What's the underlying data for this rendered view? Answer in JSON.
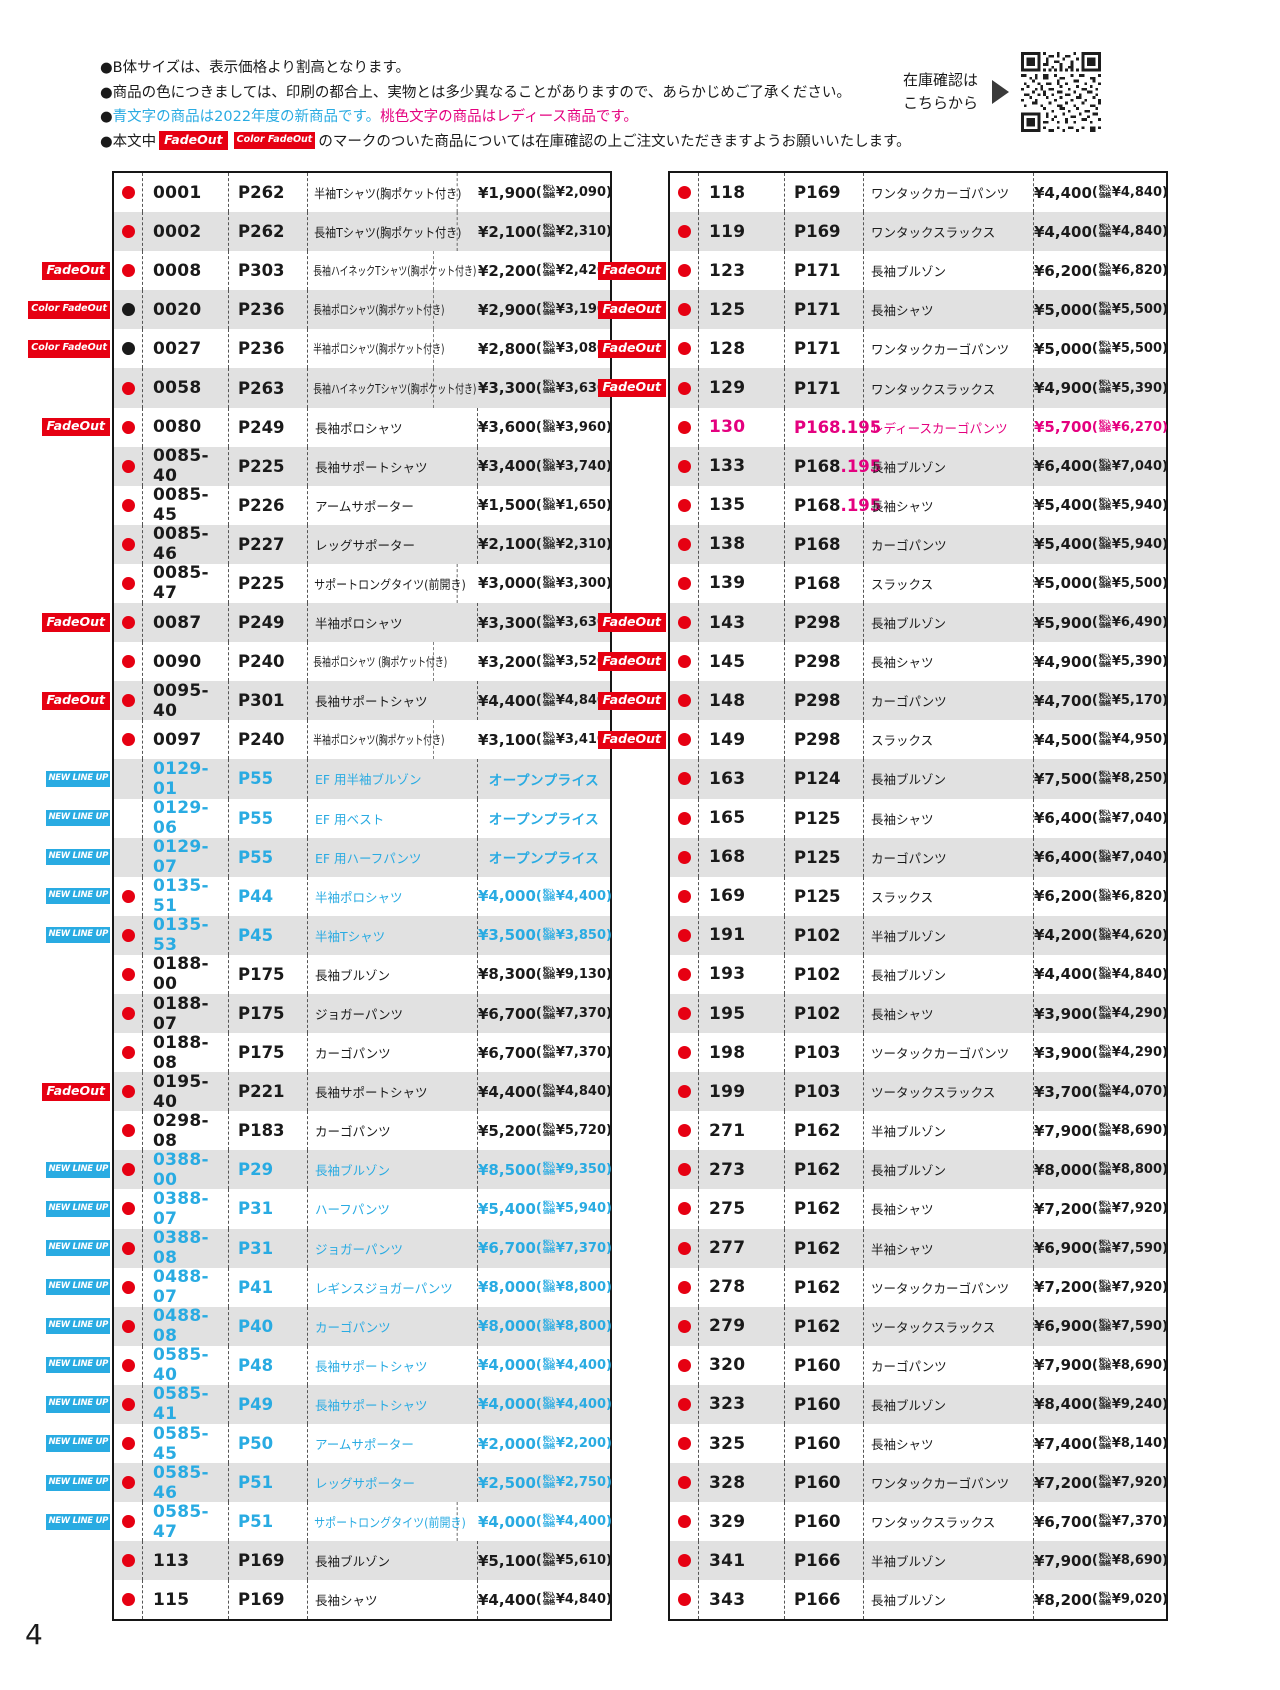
{
  "page_number": "4",
  "colors": {
    "red": "#e60012",
    "blue": "#29abe2",
    "pink": "#e4007f",
    "black": "#1a1a1a",
    "row_alt": "#e1e1e1"
  },
  "header": {
    "note1": "●B体サイズは、表示価格より割高となります。",
    "note2": "●商品の色につきましては、印刷の都合上、実物とは多少異なることがありますので、あらかじめご了承ください。",
    "note3_bullet": "●",
    "note3_blue": "青文字の商品は2022年度の新商品です。",
    "note3_pink": "桃色文字の商品はレディース商品です。",
    "note4_pre": "●本文中",
    "note4_post": "のマークのついた商品については在庫確認の上ご注文いただきますようお願いいたします。",
    "stock_check_line1": "在庫確認は",
    "stock_check_line2": "こちらから"
  },
  "badges": {
    "fadeout": "FadeOut",
    "color_fadeout": "Color FadeOut",
    "new_lineup": "NEW LINE UP"
  },
  "tax_label": [
    "税込",
    "価格"
  ],
  "open_price": "オープンプライス",
  "tables": {
    "left": [
      {
        "badge": null,
        "dot": "red",
        "code": "0001",
        "page": "P262",
        "name": "半袖Tシャツ(胸ポケット付き)",
        "price": "¥1,900",
        "tax": "¥2,090",
        "color": "black"
      },
      {
        "badge": null,
        "dot": "red",
        "code": "0002",
        "page": "P262",
        "name": "長袖Tシャツ(胸ポケット付き)",
        "price": "¥2,100",
        "tax": "¥2,310",
        "color": "black"
      },
      {
        "badge": "fadeout",
        "dot": "red",
        "code": "0008",
        "page": "P303",
        "name": "長袖ハイネックTシャツ(胸ポケット付き)",
        "price": "¥2,200",
        "tax": "¥2,420",
        "color": "black"
      },
      {
        "badge": "color_fadeout",
        "dot": "black",
        "code": "0020",
        "page": "P236",
        "name": "長袖ポロシャツ(胸ポケット付き)",
        "price": "¥2,900",
        "tax": "¥3,190",
        "color": "black"
      },
      {
        "badge": "color_fadeout",
        "dot": "black",
        "code": "0027",
        "page": "P236",
        "name": "半袖ポロシャツ(胸ポケット付き)",
        "price": "¥2,800",
        "tax": "¥3,080",
        "color": "black"
      },
      {
        "badge": null,
        "dot": "red",
        "code": "0058",
        "page": "P263",
        "name": "長袖ハイネックTシャツ(胸ポケット付き)",
        "price": "¥3,300",
        "tax": "¥3,630",
        "color": "black"
      },
      {
        "badge": "fadeout",
        "dot": "red",
        "code": "0080",
        "page": "P249",
        "name": "長袖ポロシャツ",
        "price": "¥3,600",
        "tax": "¥3,960",
        "color": "black"
      },
      {
        "badge": null,
        "dot": "red",
        "code": "0085-40",
        "page": "P225",
        "name": "長袖サポートシャツ",
        "price": "¥3,400",
        "tax": "¥3,740",
        "color": "black"
      },
      {
        "badge": null,
        "dot": "red",
        "code": "0085-45",
        "page": "P226",
        "name": "アームサポーター",
        "price": "¥1,500",
        "tax": "¥1,650",
        "color": "black"
      },
      {
        "badge": null,
        "dot": "red",
        "code": "0085-46",
        "page": "P227",
        "name": "レッグサポーター",
        "price": "¥2,100",
        "tax": "¥2,310",
        "color": "black"
      },
      {
        "badge": null,
        "dot": "red",
        "code": "0085-47",
        "page": "P225",
        "name": "サポートロングタイツ(前開き)",
        "price": "¥3,000",
        "tax": "¥3,300",
        "color": "black"
      },
      {
        "badge": "fadeout",
        "dot": "red",
        "code": "0087",
        "page": "P249",
        "name": "半袖ポロシャツ",
        "price": "¥3,300",
        "tax": "¥3,630",
        "color": "black"
      },
      {
        "badge": null,
        "dot": "red",
        "code": "0090",
        "page": "P240",
        "name": "長袖ポロシャツ (胸ポケット付き)",
        "price": "¥3,200",
        "tax": "¥3,520",
        "color": "black"
      },
      {
        "badge": "fadeout",
        "dot": "red",
        "code": "0095-40",
        "page": "P301",
        "name": "長袖サポートシャツ",
        "price": "¥4,400",
        "tax": "¥4,840",
        "color": "black"
      },
      {
        "badge": null,
        "dot": "red",
        "code": "0097",
        "page": "P240",
        "name": "半袖ポロシャツ(胸ポケット付き)",
        "price": "¥3,100",
        "tax": "¥3,410",
        "color": "black"
      },
      {
        "badge": "new_lineup",
        "dot": null,
        "code": "0129-01",
        "page": "P55",
        "name": "EF 用半袖ブルゾン",
        "open": true,
        "color": "blue"
      },
      {
        "badge": "new_lineup",
        "dot": null,
        "code": "0129-06",
        "page": "P55",
        "name": "EF 用ベスト",
        "open": true,
        "color": "blue"
      },
      {
        "badge": "new_lineup",
        "dot": null,
        "code": "0129-07",
        "page": "P55",
        "name": "EF 用ハーフパンツ",
        "open": true,
        "color": "blue"
      },
      {
        "badge": "new_lineup",
        "dot": "red",
        "code": "0135-51",
        "page": "P44",
        "name": "半袖ポロシャツ",
        "price": "¥4,000",
        "tax": "¥4,400",
        "color": "blue"
      },
      {
        "badge": "new_lineup",
        "dot": "red",
        "code": "0135-53",
        "page": "P45",
        "name": "半袖Tシャツ",
        "price": "¥3,500",
        "tax": "¥3,850",
        "color": "blue"
      },
      {
        "badge": null,
        "dot": "red",
        "code": "0188-00",
        "page": "P175",
        "name": "長袖ブルゾン",
        "price": "¥8,300",
        "tax": "¥9,130",
        "color": "black"
      },
      {
        "badge": null,
        "dot": "red",
        "code": "0188-07",
        "page": "P175",
        "name": "ジョガーパンツ",
        "price": "¥6,700",
        "tax": "¥7,370",
        "color": "black"
      },
      {
        "badge": null,
        "dot": "red",
        "code": "0188-08",
        "page": "P175",
        "name": "カーゴパンツ",
        "price": "¥6,700",
        "tax": "¥7,370",
        "color": "black"
      },
      {
        "badge": "fadeout",
        "dot": "red",
        "code": "0195-40",
        "page": "P221",
        "name": "長袖サポートシャツ",
        "price": "¥4,400",
        "tax": "¥4,840",
        "color": "black"
      },
      {
        "badge": null,
        "dot": "red",
        "code": "0298-08",
        "page": "P183",
        "name": "カーゴパンツ",
        "price": "¥5,200",
        "tax": "¥5,720",
        "color": "black"
      },
      {
        "badge": "new_lineup",
        "dot": "red",
        "code": "0388-00",
        "page": "P29",
        "name": "長袖ブルゾン",
        "price": "¥8,500",
        "tax": "¥9,350",
        "color": "blue"
      },
      {
        "badge": "new_lineup",
        "dot": "red",
        "code": "0388-07",
        "page": "P31",
        "name": "ハーフパンツ",
        "price": "¥5,400",
        "tax": "¥5,940",
        "color": "blue"
      },
      {
        "badge": "new_lineup",
        "dot": "red",
        "code": "0388-08",
        "page": "P31",
        "name": "ジョガーパンツ",
        "price": "¥6,700",
        "tax": "¥7,370",
        "color": "blue"
      },
      {
        "badge": "new_lineup",
        "dot": "red",
        "code": "0488-07",
        "page": "P41",
        "name": "レギンスジョガーパンツ",
        "price": "¥8,000",
        "tax": "¥8,800",
        "color": "blue"
      },
      {
        "badge": "new_lineup",
        "dot": "red",
        "code": "0488-08",
        "page": "P40",
        "name": "カーゴパンツ",
        "price": "¥8,000",
        "tax": "¥8,800",
        "color": "blue"
      },
      {
        "badge": "new_lineup",
        "dot": "red",
        "code": "0585-40",
        "page": "P48",
        "name": "長袖サポートシャツ",
        "price": "¥4,000",
        "tax": "¥4,400",
        "color": "blue"
      },
      {
        "badge": "new_lineup",
        "dot": "red",
        "code": "0585-41",
        "page": "P49",
        "name": "長袖サポートシャツ",
        "price": "¥4,000",
        "tax": "¥4,400",
        "color": "blue"
      },
      {
        "badge": "new_lineup",
        "dot": "red",
        "code": "0585-45",
        "page": "P50",
        "name": "アームサポーター",
        "price": "¥2,000",
        "tax": "¥2,200",
        "color": "blue"
      },
      {
        "badge": "new_lineup",
        "dot": "red",
        "code": "0585-46",
        "page": "P51",
        "name": "レッグサポーター",
        "price": "¥2,500",
        "tax": "¥2,750",
        "color": "blue"
      },
      {
        "badge": "new_lineup",
        "dot": "red",
        "code": "0585-47",
        "page": "P51",
        "name": "サポートロングタイツ(前開き)",
        "price": "¥4,000",
        "tax": "¥4,400",
        "color": "blue"
      },
      {
        "badge": null,
        "dot": "red",
        "code": "113",
        "page": "P169",
        "name": "長袖ブルゾン",
        "price": "¥5,100",
        "tax": "¥5,610",
        "color": "black"
      },
      {
        "badge": null,
        "dot": "red",
        "code": "115",
        "page": "P169",
        "name": "長袖シャツ",
        "price": "¥4,400",
        "tax": "¥4,840",
        "color": "black"
      }
    ],
    "right": [
      {
        "badge": null,
        "dot": "red",
        "code": "118",
        "page": "P169",
        "name": "ワンタックカーゴパンツ",
        "price": "¥4,400",
        "tax": "¥4,840",
        "color": "black"
      },
      {
        "badge": null,
        "dot": "red",
        "code": "119",
        "page": "P169",
        "name": "ワンタックスラックス",
        "price": "¥4,400",
        "tax": "¥4,840",
        "color": "black"
      },
      {
        "badge": "fadeout",
        "dot": "red",
        "code": "123",
        "page": "P171",
        "name": "長袖ブルゾン",
        "price": "¥6,200",
        "tax": "¥6,820",
        "color": "black"
      },
      {
        "badge": "fadeout",
        "dot": "red",
        "code": "125",
        "page": "P171",
        "name": "長袖シャツ",
        "price": "¥5,000",
        "tax": "¥5,500",
        "color": "black"
      },
      {
        "badge": "fadeout",
        "dot": "red",
        "code": "128",
        "page": "P171",
        "name": "ワンタックカーゴパンツ",
        "price": "¥5,000",
        "tax": "¥5,500",
        "color": "black"
      },
      {
        "badge": "fadeout",
        "dot": "red",
        "code": "129",
        "page": "P171",
        "name": "ワンタックスラックス",
        "price": "¥4,900",
        "tax": "¥5,390",
        "color": "black"
      },
      {
        "badge": null,
        "dot": "red",
        "code": "130",
        "page": "P168.195",
        "name": "レディースカーゴパンツ",
        "price": "¥5,700",
        "tax": "¥6,270",
        "color": "pink"
      },
      {
        "badge": null,
        "dot": "red",
        "code": "133",
        "page": "P168",
        "page_suffix": ".195",
        "name": "長袖ブルゾン",
        "price": "¥6,400",
        "tax": "¥7,040",
        "color": "black"
      },
      {
        "badge": null,
        "dot": "red",
        "code": "135",
        "page": "P168",
        "page_suffix": ".195",
        "name": "長袖シャツ",
        "price": "¥5,400",
        "tax": "¥5,940",
        "color": "black"
      },
      {
        "badge": null,
        "dot": "red",
        "code": "138",
        "page": "P168",
        "name": "カーゴパンツ",
        "price": "¥5,400",
        "tax": "¥5,940",
        "color": "black"
      },
      {
        "badge": null,
        "dot": "red",
        "code": "139",
        "page": "P168",
        "name": "スラックス",
        "price": "¥5,000",
        "tax": "¥5,500",
        "color": "black"
      },
      {
        "badge": "fadeout",
        "dot": "red",
        "code": "143",
        "page": "P298",
        "name": "長袖ブルゾン",
        "price": "¥5,900",
        "tax": "¥6,490",
        "color": "black"
      },
      {
        "badge": "fadeout",
        "dot": "red",
        "code": "145",
        "page": "P298",
        "name": "長袖シャツ",
        "price": "¥4,900",
        "tax": "¥5,390",
        "color": "black"
      },
      {
        "badge": "fadeout",
        "dot": "red",
        "code": "148",
        "page": "P298",
        "name": "カーゴパンツ",
        "price": "¥4,700",
        "tax": "¥5,170",
        "color": "black"
      },
      {
        "badge": "fadeout",
        "dot": "red",
        "code": "149",
        "page": "P298",
        "name": "スラックス",
        "price": "¥4,500",
        "tax": "¥4,950",
        "color": "black"
      },
      {
        "badge": null,
        "dot": "red",
        "code": "163",
        "page": "P124",
        "name": "長袖ブルゾン",
        "price": "¥7,500",
        "tax": "¥8,250",
        "color": "black"
      },
      {
        "badge": null,
        "dot": "red",
        "code": "165",
        "page": "P125",
        "name": "長袖シャツ",
        "price": "¥6,400",
        "tax": "¥7,040",
        "color": "black"
      },
      {
        "badge": null,
        "dot": "red",
        "code": "168",
        "page": "P125",
        "name": "カーゴパンツ",
        "price": "¥6,400",
        "tax": "¥7,040",
        "color": "black"
      },
      {
        "badge": null,
        "dot": "red",
        "code": "169",
        "page": "P125",
        "name": "スラックス",
        "price": "¥6,200",
        "tax": "¥6,820",
        "color": "black"
      },
      {
        "badge": null,
        "dot": "red",
        "code": "191",
        "page": "P102",
        "name": "半袖ブルゾン",
        "price": "¥4,200",
        "tax": "¥4,620",
        "color": "black"
      },
      {
        "badge": null,
        "dot": "red",
        "code": "193",
        "page": "P102",
        "name": "長袖ブルゾン",
        "price": "¥4,400",
        "tax": "¥4,840",
        "color": "black"
      },
      {
        "badge": null,
        "dot": "red",
        "code": "195",
        "page": "P102",
        "name": "長袖シャツ",
        "price": "¥3,900",
        "tax": "¥4,290",
        "color": "black"
      },
      {
        "badge": null,
        "dot": "red",
        "code": "198",
        "page": "P103",
        "name": "ツータックカーゴパンツ",
        "price": "¥3,900",
        "tax": "¥4,290",
        "color": "black"
      },
      {
        "badge": null,
        "dot": "red",
        "code": "199",
        "page": "P103",
        "name": "ツータックスラックス",
        "price": "¥3,700",
        "tax": "¥4,070",
        "color": "black"
      },
      {
        "badge": null,
        "dot": "red",
        "code": "271",
        "page": "P162",
        "name": "半袖ブルゾン",
        "price": "¥7,900",
        "tax": "¥8,690",
        "color": "black"
      },
      {
        "badge": null,
        "dot": "red",
        "code": "273",
        "page": "P162",
        "name": "長袖ブルゾン",
        "price": "¥8,000",
        "tax": "¥8,800",
        "color": "black"
      },
      {
        "badge": null,
        "dot": "red",
        "code": "275",
        "page": "P162",
        "name": "長袖シャツ",
        "price": "¥7,200",
        "tax": "¥7,920",
        "color": "black"
      },
      {
        "badge": null,
        "dot": "red",
        "code": "277",
        "page": "P162",
        "name": "半袖シャツ",
        "price": "¥6,900",
        "tax": "¥7,590",
        "color": "black"
      },
      {
        "badge": null,
        "dot": "red",
        "code": "278",
        "page": "P162",
        "name": "ツータックカーゴパンツ",
        "price": "¥7,200",
        "tax": "¥7,920",
        "color": "black"
      },
      {
        "badge": null,
        "dot": "red",
        "code": "279",
        "page": "P162",
        "name": "ツータックスラックス",
        "price": "¥6,900",
        "tax": "¥7,590",
        "color": "black"
      },
      {
        "badge": null,
        "dot": "red",
        "code": "320",
        "page": "P160",
        "name": "カーゴパンツ",
        "price": "¥7,900",
        "tax": "¥8,690",
        "color": "black"
      },
      {
        "badge": null,
        "dot": "red",
        "code": "323",
        "page": "P160",
        "name": "長袖ブルゾン",
        "price": "¥8,400",
        "tax": "¥9,240",
        "color": "black"
      },
      {
        "badge": null,
        "dot": "red",
        "code": "325",
        "page": "P160",
        "name": "長袖シャツ",
        "price": "¥7,400",
        "tax": "¥8,140",
        "color": "black"
      },
      {
        "badge": null,
        "dot": "red",
        "code": "328",
        "page": "P160",
        "name": "ワンタックカーゴパンツ",
        "price": "¥7,200",
        "tax": "¥7,920",
        "color": "black"
      },
      {
        "badge": null,
        "dot": "red",
        "code": "329",
        "page": "P160",
        "name": "ワンタックスラックス",
        "price": "¥6,700",
        "tax": "¥7,370",
        "color": "black"
      },
      {
        "badge": null,
        "dot": "red",
        "code": "341",
        "page": "P166",
        "name": "半袖ブルゾン",
        "price": "¥7,900",
        "tax": "¥8,690",
        "color": "black"
      },
      {
        "badge": null,
        "dot": "red",
        "code": "343",
        "page": "P166",
        "name": "長袖ブルゾン",
        "price": "¥8,200",
        "tax": "¥9,020",
        "color": "black"
      }
    ]
  }
}
